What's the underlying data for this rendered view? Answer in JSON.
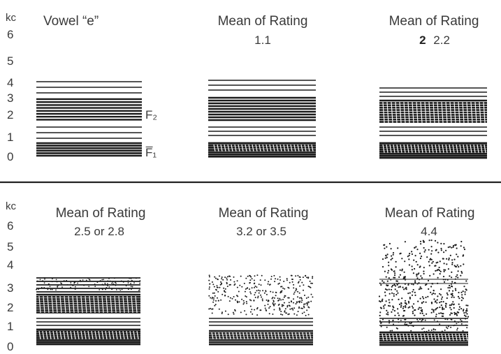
{
  "figure": {
    "axis_unit": "kc",
    "axis_ticks": [
      "6",
      "5",
      "4",
      "3",
      "2",
      "1",
      "0"
    ],
    "colors": {
      "ink": "#1c1c1c",
      "text": "#3a3a3a",
      "divider": "#222222"
    },
    "top_row": [
      {
        "title": "Vowel “e”",
        "subtitle": "",
        "marker": "",
        "formant_labels": {
          "f2": "F₂",
          "f1": "F̅₁"
        }
      },
      {
        "title": "Mean of Rating",
        "subtitle": "1.1",
        "marker": ""
      },
      {
        "title": "Mean of Rating",
        "subtitle": "2.2",
        "marker": "2"
      }
    ],
    "bottom_row": [
      {
        "title": "Mean of Rating",
        "subtitle": "2.5 or 2.8",
        "marker": ""
      },
      {
        "title": "Mean of Rating",
        "subtitle": "3.2 or 3.5",
        "marker": ""
      },
      {
        "title": "Mean of Rating",
        "subtitle": "4.4",
        "marker": ""
      }
    ]
  }
}
